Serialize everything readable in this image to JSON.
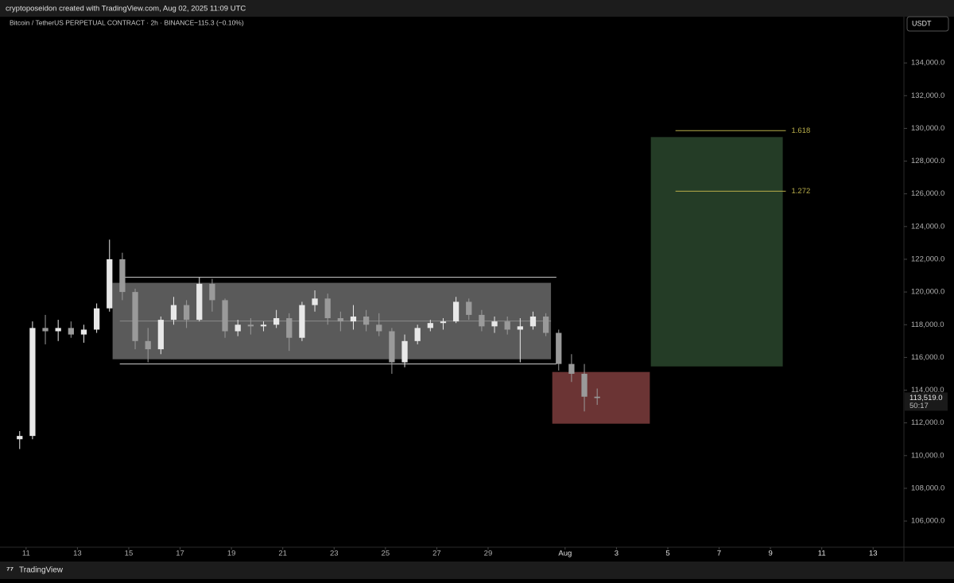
{
  "chart_data": {
    "type": "candlestick",
    "header": "cryptoposeidon created with TradingView.com, Aug 02, 2025 11:09 UTC",
    "symbol": "Bitcoin / TetherUS PERPETUAL CONTRACT · 2h · BINANCE",
    "change": "−115.3 (−0.10%)",
    "currency": "USDT",
    "footer": "TradingView",
    "last_price_label": "113,519.0",
    "countdown": "50:17",
    "up_color": "#e8e8e8",
    "down_color": "#9a9a9a",
    "x": [
      10.75,
      11.25,
      11.75,
      12.25,
      12.75,
      13.25,
      13.75,
      14.25,
      14.75,
      15.25,
      15.75,
      16.25,
      16.75,
      17.25,
      17.75,
      18.25,
      18.75,
      19.25,
      19.75,
      20.25,
      20.75,
      21.25,
      21.75,
      22.25,
      22.75,
      23.25,
      23.75,
      24.25,
      24.75,
      25.25,
      25.75,
      26.25,
      26.75,
      27.25,
      27.75,
      28.25,
      28.75,
      29.25,
      29.75,
      30.25,
      30.75,
      31.25,
      31.75,
      32.25,
      32.75,
      33.25
    ],
    "open": [
      111000,
      111200,
      117800,
      117600,
      117800,
      117400,
      117700,
      119000,
      122000,
      120000,
      117000,
      116500,
      118300,
      119200,
      118300,
      120500,
      119500,
      117600,
      118000,
      117900,
      118000,
      118400,
      117200,
      119200,
      119600,
      118400,
      118200,
      118500,
      118000,
      117600,
      115700,
      117000,
      117800,
      118100,
      118200,
      119400,
      118600,
      117900,
      118200,
      117700,
      117900,
      118500,
      117500,
      115600,
      115000,
      113600
    ],
    "high": [
      111500,
      118200,
      118600,
      118300,
      118200,
      118000,
      119300,
      123200,
      122400,
      120200,
      117800,
      118500,
      119700,
      119500,
      120900,
      120800,
      119600,
      118300,
      118400,
      118200,
      118900,
      118700,
      119400,
      120100,
      119900,
      118800,
      119200,
      118900,
      118700,
      117800,
      117400,
      118000,
      118300,
      118400,
      119700,
      119600,
      118900,
      118500,
      118500,
      118400,
      118800,
      118700,
      117700,
      116200,
      115600,
      114100
    ],
    "low": [
      110400,
      111000,
      116800,
      117000,
      117200,
      116900,
      117500,
      118800,
      119500,
      116500,
      115700,
      116200,
      118000,
      117800,
      118200,
      118800,
      117200,
      117300,
      117400,
      117600,
      117800,
      116400,
      117000,
      118800,
      118000,
      117600,
      117700,
      117600,
      117300,
      115000,
      115400,
      116800,
      117600,
      117700,
      118100,
      118300,
      117600,
      117500,
      117400,
      115700,
      117700,
      117300,
      115200,
      114500,
      112700,
      113100
    ],
    "close": [
      111200,
      117800,
      117600,
      117800,
      117400,
      117700,
      119000,
      122000,
      120000,
      117000,
      116500,
      118300,
      119200,
      118300,
      120500,
      119500,
      117600,
      118000,
      117900,
      118000,
      118400,
      117200,
      119200,
      119600,
      118400,
      118200,
      118500,
      118000,
      117600,
      115700,
      117000,
      117800,
      118100,
      118200,
      119400,
      118600,
      117900,
      118200,
      117700,
      117900,
      118500,
      117500,
      115600,
      115000,
      113600,
      113519
    ],
    "xlim": [
      10.2,
      45.2
    ],
    "xticks": [
      11,
      13,
      15,
      17,
      19,
      21,
      23,
      25,
      27,
      29,
      {
        "value": 32,
        "label": "Aug"
      },
      {
        "value": 34,
        "label": "3"
      },
      {
        "value": 36,
        "label": "5"
      },
      {
        "value": 38,
        "label": "7"
      },
      {
        "value": 40,
        "label": "9"
      },
      {
        "value": 42,
        "label": "11"
      },
      {
        "value": 44,
        "label": "13"
      }
    ],
    "ylim": [
      104400,
      136000
    ],
    "yticks": [
      {
        "value": 106000,
        "label": "106,000.0"
      },
      {
        "value": 108000,
        "label": "108,000.0"
      },
      {
        "value": 110000,
        "label": "110,000.0"
      },
      {
        "value": 112000,
        "label": "112,000.0"
      },
      {
        "value": 114000,
        "label": "114,000.0"
      },
      {
        "value": 116000,
        "label": "116,000.0"
      },
      {
        "value": 118000,
        "label": "118,000.0"
      },
      {
        "value": 120000,
        "label": "120,000.0"
      },
      {
        "value": 122000,
        "label": "122,000.0"
      },
      {
        "value": 124000,
        "label": "124,000.0"
      },
      {
        "value": 126000,
        "label": "126,000.0"
      },
      {
        "value": 128000,
        "label": "128,000.0"
      },
      {
        "value": 130000,
        "label": "130,000.0"
      },
      {
        "value": 132000,
        "label": "132,000.0"
      },
      {
        "value": 134000,
        "label": "134,000.0"
      }
    ],
    "drawings": {
      "range_box": {
        "x": [
          14.37,
          31.45
        ],
        "y": [
          115890,
          120560
        ],
        "color": "#5a5a5a"
      },
      "stop_box": {
        "x": [
          31.5,
          35.3
        ],
        "y": [
          111950,
          115110
        ],
        "color": "#6b3434"
      },
      "target_box": {
        "x": [
          35.34,
          40.48
        ],
        "y": [
          115450,
          129470
        ],
        "color": "#243c26"
      },
      "lines": [
        {
          "x": [
            14.65,
            31.66
          ],
          "y": 120900,
          "color": "#d0d0d0"
        },
        {
          "x": [
            14.65,
            31.66
          ],
          "y": 115600,
          "color": "#d0d0d0"
        },
        {
          "x": [
            14.65,
            31.45
          ],
          "y": 118225,
          "color": "#8a8a8a"
        }
      ],
      "fib_levels": [
        {
          "label": "1.618",
          "x": [
            36.3,
            40.6
          ],
          "y": 129860
        },
        {
          "label": "1.272",
          "x": [
            36.3,
            40.6
          ],
          "y": 126160
        }
      ],
      "fib_color": "#b8ad4a"
    }
  }
}
